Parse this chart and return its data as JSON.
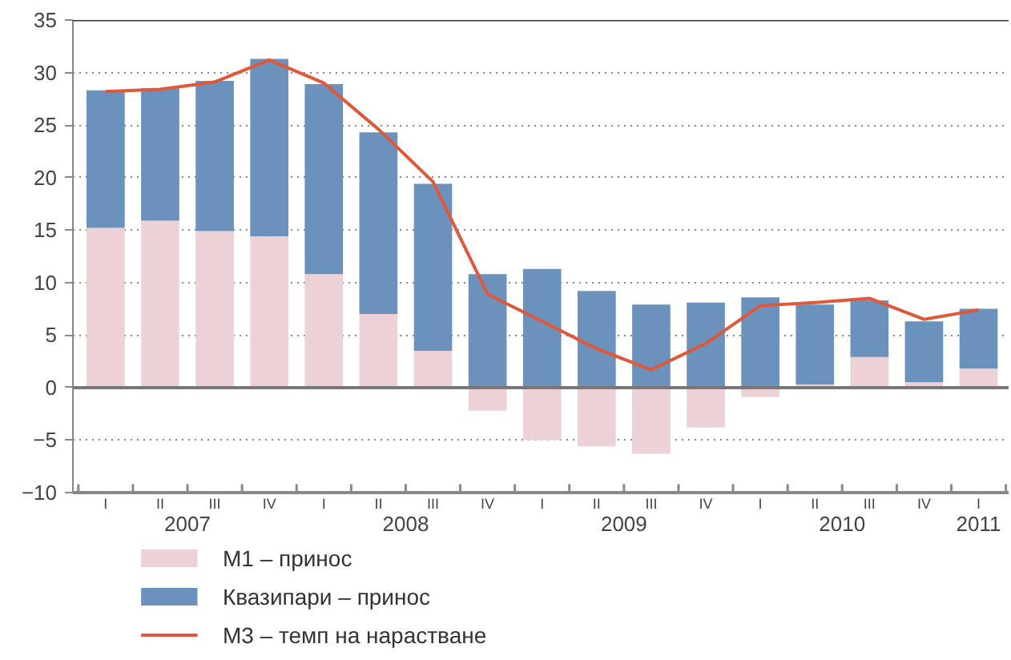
{
  "chart_data": {
    "type": "bar",
    "stacked": true,
    "categories": [
      "I",
      "II",
      "III",
      "IV",
      "I",
      "II",
      "III",
      "IV",
      "I",
      "II",
      "III",
      "IV",
      "I",
      "II",
      "III",
      "IV",
      "I"
    ],
    "annotations": [
      "2007",
      "2008",
      "2009",
      "2010",
      "2011"
    ],
    "series": [
      {
        "name": "М1 – принос",
        "color": "#ecd2d6",
        "values": [
          15.2,
          15.9,
          14.9,
          14.4,
          10.8,
          7.0,
          3.5,
          -2.2,
          -5.0,
          -5.6,
          -6.3,
          -3.8,
          -0.9,
          0.3,
          2.9,
          0.5,
          1.8
        ]
      },
      {
        "name": "Квазипари – принос",
        "color": "#6b92bd",
        "values": [
          13.1,
          12.6,
          14.3,
          16.9,
          18.1,
          17.3,
          15.9,
          10.8,
          11.3,
          9.2,
          7.9,
          8.1,
          8.6,
          7.6,
          5.4,
          5.8,
          5.7
        ]
      },
      {
        "name": "М3 – темп на нарастване",
        "type": "line",
        "color": "#e0583a",
        "values": [
          28.2,
          28.4,
          29.1,
          31.2,
          29.0,
          24.6,
          19.6,
          8.9,
          6.3,
          3.7,
          1.7,
          4.2,
          7.8,
          8.1,
          8.5,
          6.5,
          7.4
        ]
      }
    ],
    "ylim": [
      -10,
      35
    ],
    "yticks": [
      -10,
      -5,
      0,
      5,
      10,
      15,
      20,
      25,
      30,
      35
    ],
    "grid": "y",
    "legend": "bottom"
  }
}
